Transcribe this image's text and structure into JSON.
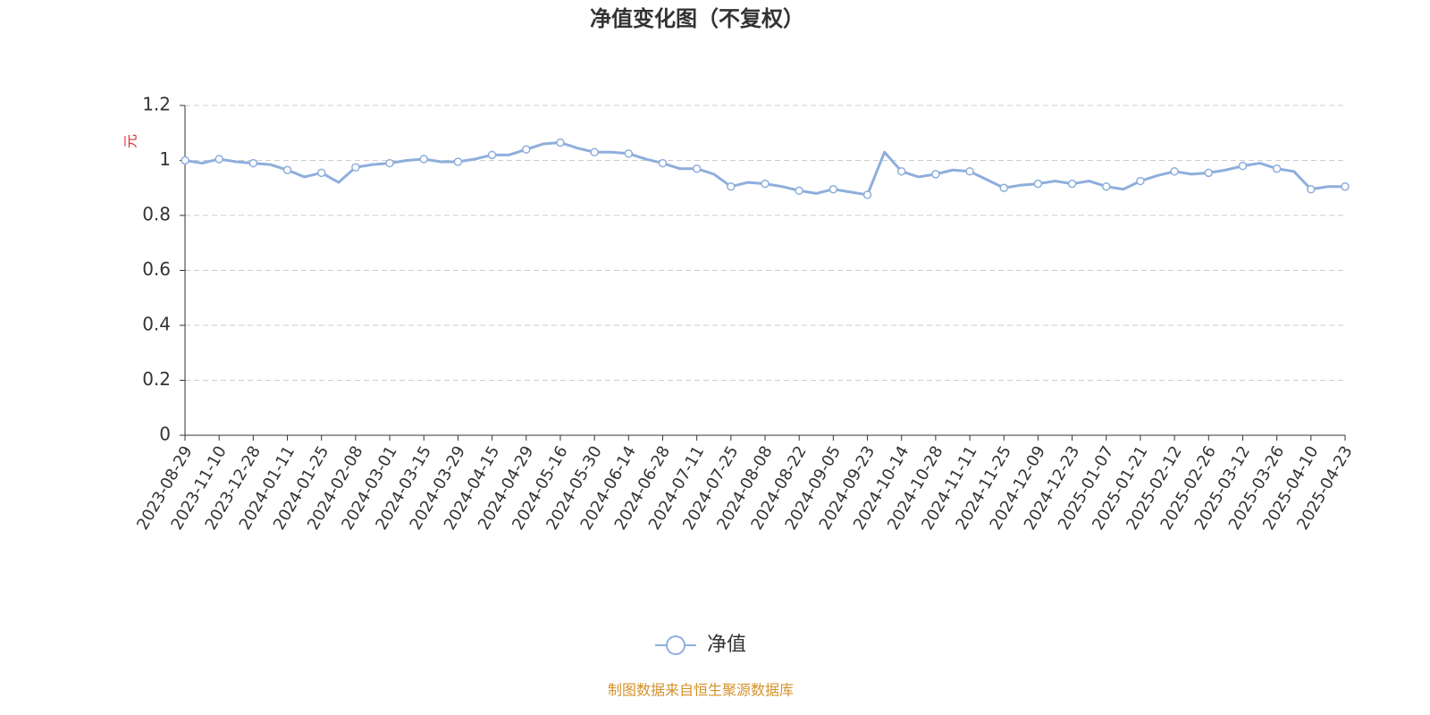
{
  "chart_data": {
    "type": "line",
    "title": "净值变化图（不复权）",
    "y_label": "元",
    "source": "制图数据来自恒生聚源数据库",
    "categories": [
      "2023-08-29",
      null,
      "2023-11-10",
      null,
      "2023-12-28",
      null,
      "2024-01-11",
      null,
      "2024-01-25",
      null,
      "2024-02-08",
      null,
      "2024-03-01",
      null,
      "2024-03-15",
      null,
      "2024-03-29",
      null,
      "2024-04-15",
      null,
      "2024-04-29",
      null,
      "2024-05-16",
      null,
      "2024-05-30",
      null,
      "2024-06-14",
      null,
      "2024-06-28",
      null,
      "2024-07-11",
      null,
      "2024-07-25",
      null,
      "2024-08-08",
      null,
      "2024-08-22",
      null,
      "2024-09-05",
      null,
      "2024-09-23",
      null,
      "2024-10-14",
      null,
      "2024-10-28",
      null,
      "2024-11-11",
      null,
      "2024-11-25",
      null,
      "2024-12-09",
      null,
      "2024-12-23",
      null,
      "2025-01-07",
      null,
      "2025-01-21",
      null,
      "2025-02-12",
      null,
      "2025-02-26",
      null,
      "2025-03-12",
      null,
      "2025-03-26",
      null,
      "2025-04-10",
      null,
      "2025-04-23"
    ],
    "series": [
      {
        "name": "净值",
        "color": "#8eaedc",
        "values": [
          1.0,
          0.99,
          1.005,
          0.995,
          0.99,
          0.985,
          0.965,
          0.94,
          0.955,
          0.92,
          0.975,
          0.985,
          0.99,
          1.0,
          1.005,
          0.995,
          0.995,
          1.005,
          1.02,
          1.02,
          1.04,
          1.06,
          1.065,
          1.045,
          1.03,
          1.03,
          1.025,
          1.005,
          0.99,
          0.97,
          0.97,
          0.95,
          0.905,
          0.92,
          0.915,
          0.905,
          0.89,
          0.88,
          0.895,
          0.885,
          0.875,
          1.03,
          0.96,
          0.94,
          0.95,
          0.965,
          0.96,
          0.93,
          0.9,
          0.91,
          0.915,
          0.925,
          0.915,
          0.925,
          0.905,
          0.895,
          0.925,
          0.945,
          0.96,
          0.95,
          0.955,
          0.965,
          0.98,
          0.99,
          0.97,
          0.96,
          0.895,
          0.905,
          0.905
        ]
      }
    ],
    "ylim": [
      0,
      1.2
    ],
    "yticks": [
      0,
      0.2,
      0.4,
      0.6,
      0.8,
      1,
      1.2
    ],
    "grid": true,
    "legend": "bottom"
  }
}
